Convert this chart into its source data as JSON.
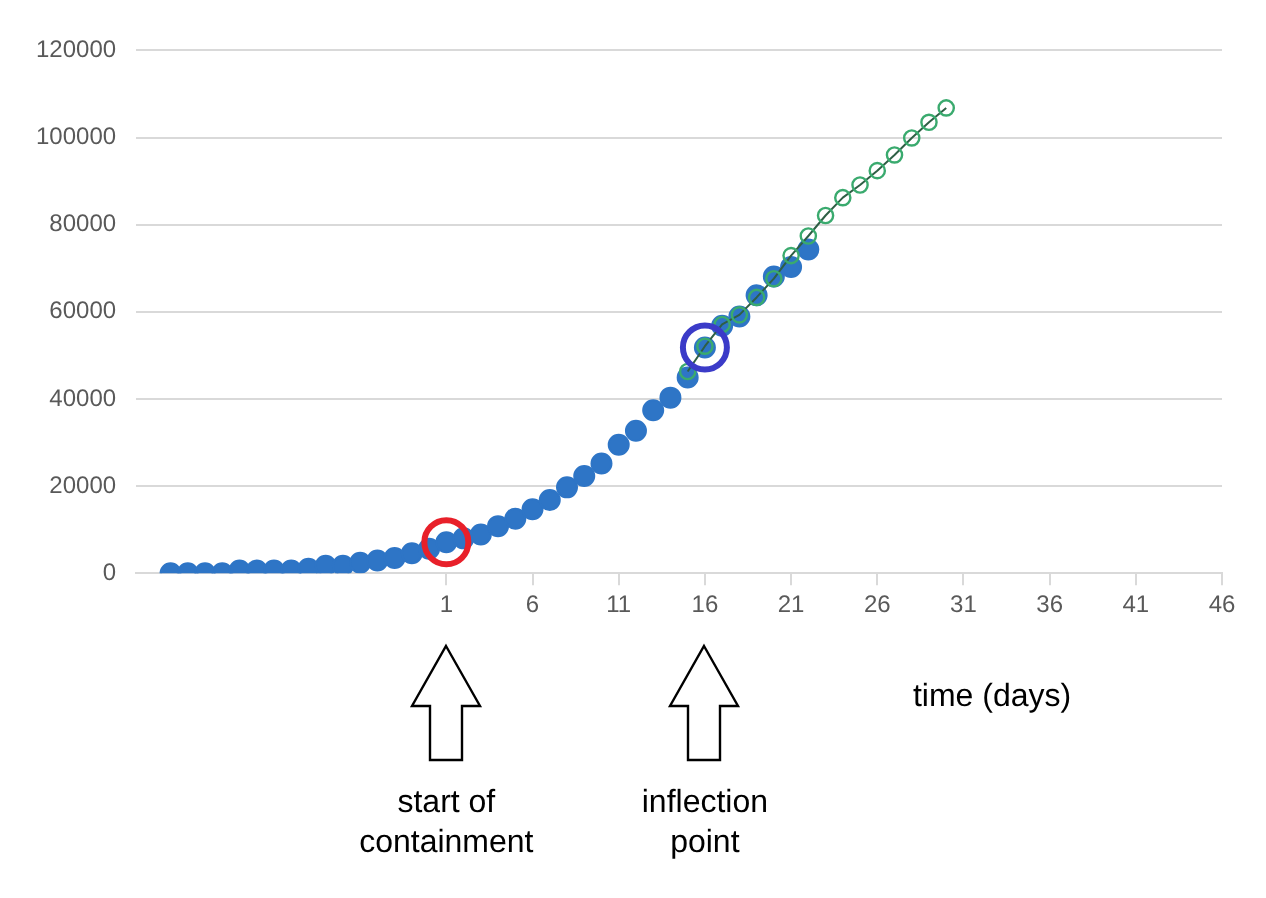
{
  "chart_data": {
    "type": "scatter",
    "xlabel": "time (days)",
    "marker": "circle",
    "grid": "y",
    "xlim": [
      -17,
      46
    ],
    "xticks": [
      1,
      6,
      11,
      16,
      21,
      26,
      31,
      36,
      41,
      46
    ],
    "ylim": [
      0,
      120000
    ],
    "yticks": [
      0,
      20000,
      40000,
      60000,
      80000,
      100000,
      120000
    ],
    "series": [
      {
        "type": "scatter",
        "color": "#2e75c6",
        "x": [
          -15,
          -14,
          -13,
          -12,
          -11,
          -10,
          -9,
          -8,
          -7,
          -6,
          -5,
          -4,
          -3,
          -2,
          -1,
          0,
          1,
          2,
          3,
          4,
          5,
          6,
          7,
          8,
          9,
          10,
          11,
          12,
          13,
          14,
          15,
          16,
          17,
          18,
          19,
          20,
          21,
          22
        ],
        "values": [
          0,
          0,
          0,
          0,
          600,
          600,
          600,
          600,
          1000,
          1700,
          1700,
          2400,
          2900,
          3500,
          4600,
          5600,
          7100,
          8000,
          8900,
          10800,
          12500,
          14700,
          16800,
          19700,
          22300,
          25200,
          29500,
          32700,
          37400,
          40300,
          44900,
          51800,
          56800,
          58900,
          63800,
          68100,
          70300,
          74300
        ]
      },
      {
        "type": "line",
        "color": "#3aaa6e",
        "x": [
          15,
          16,
          17,
          18,
          19,
          20,
          21,
          22,
          23,
          24,
          25,
          26,
          27,
          28,
          29,
          30
        ],
        "values": [
          46300,
          52100,
          57100,
          59300,
          63300,
          67600,
          72900,
          77400,
          82100,
          86200,
          89100,
          92400,
          96000,
          99900,
          103500,
          106800
        ]
      }
    ],
    "annotations": [
      "start of containment",
      "inflection point"
    ]
  }
}
